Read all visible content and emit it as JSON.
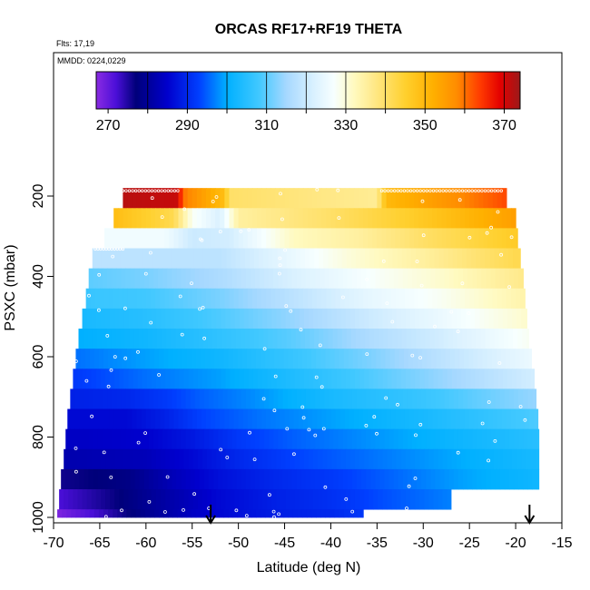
{
  "chart_data": {
    "type": "heatmap",
    "title": "ORCAS RF17+RF19 THETA",
    "note_flights": "Flts: 17,19",
    "note_dates": "MMDD: 0224,0229",
    "xlabel": "Latitude (deg N)",
    "ylabel": "PSXC (mbar)",
    "xlim": [
      -70,
      -15
    ],
    "ylim": [
      1000,
      100
    ],
    "x_ticks": [
      "-70",
      "-65",
      "-60",
      "-55",
      "-50",
      "-45",
      "-40",
      "-35",
      "-30",
      "-25",
      "-20",
      "-15"
    ],
    "y_ticks": [
      "200",
      "400",
      "600",
      "800",
      "1000"
    ],
    "colorbar": {
      "range": [
        267,
        374
      ],
      "tick_labels": [
        "270",
        "290",
        "310",
        "330",
        "350",
        "370"
      ],
      "stops": [
        [
          267,
          "#8a2be2"
        ],
        [
          272,
          "#4b0fd8"
        ],
        [
          277,
          "#00007a"
        ],
        [
          285,
          "#0000cd"
        ],
        [
          293,
          "#0040ff"
        ],
        [
          300,
          "#00b0ff"
        ],
        [
          308,
          "#40c8ff"
        ],
        [
          315,
          "#a6d8ff"
        ],
        [
          322,
          "#daf1ff"
        ],
        [
          327,
          "#f7ffff"
        ],
        [
          332,
          "#fffac0"
        ],
        [
          337,
          "#ffe98a"
        ],
        [
          345,
          "#ffd02e"
        ],
        [
          352,
          "#ffb000"
        ],
        [
          358,
          "#ff8c00"
        ],
        [
          364,
          "#ff3a00"
        ],
        [
          369,
          "#e30000"
        ],
        [
          374,
          "#9b1a1a"
        ]
      ]
    },
    "pressure_bands": [
      {
        "p_top": 180,
        "p_bot": 230,
        "lat_min": -62.5,
        "lat_max": -21.0,
        "theta": [
          [
            -62.5,
            372
          ],
          [
            -56.5,
            371
          ],
          [
            -56,
            360
          ],
          [
            -51.5,
            349
          ],
          [
            -51,
            340
          ],
          [
            -35,
            336
          ],
          [
            -34,
            350
          ],
          [
            -21,
            363
          ]
        ]
      },
      {
        "p_top": 230,
        "p_bot": 280,
        "lat_min": -63.5,
        "lat_max": -20.0,
        "theta": [
          [
            -63.5,
            349
          ],
          [
            -57,
            342
          ],
          [
            -55,
            328
          ],
          [
            -52,
            322
          ],
          [
            -50,
            335
          ],
          [
            -40,
            340
          ],
          [
            -32,
            345
          ],
          [
            -20,
            355
          ]
        ]
      },
      {
        "p_top": 280,
        "p_bot": 330,
        "lat_min": -64.5,
        "lat_max": -19.8,
        "theta": [
          [
            -64.5,
            326
          ],
          [
            -58,
            326
          ],
          [
            -55,
            320
          ],
          [
            -51,
            321
          ],
          [
            -44,
            332
          ],
          [
            -37,
            335
          ],
          [
            -30,
            340
          ],
          [
            -20,
            346
          ]
        ]
      },
      {
        "p_top": 330,
        "p_bot": 380,
        "lat_min": -65.8,
        "lat_max": -19.5,
        "theta": [
          [
            -65.8,
            318
          ],
          [
            -58,
            318
          ],
          [
            -52,
            318
          ],
          [
            -45,
            324
          ],
          [
            -38,
            330
          ],
          [
            -30,
            335
          ],
          [
            -20,
            342
          ]
        ]
      },
      {
        "p_top": 380,
        "p_bot": 430,
        "lat_min": -66.2,
        "lat_max": -19.2,
        "theta": [
          [
            -66.2,
            310
          ],
          [
            -60,
            312
          ],
          [
            -52,
            316
          ],
          [
            -44,
            322
          ],
          [
            -36,
            327
          ],
          [
            -28,
            331
          ],
          [
            -19.2,
            337
          ]
        ]
      },
      {
        "p_top": 430,
        "p_bot": 480,
        "lat_min": -66.5,
        "lat_max": -19.0,
        "theta": [
          [
            -66.5,
            307
          ],
          [
            -60,
            308
          ],
          [
            -52,
            312
          ],
          [
            -44,
            318
          ],
          [
            -36,
            324
          ],
          [
            -28,
            328
          ],
          [
            -19,
            334
          ]
        ]
      },
      {
        "p_top": 480,
        "p_bot": 530,
        "lat_min": -66.9,
        "lat_max": -18.8,
        "theta": [
          [
            -66.9,
            303
          ],
          [
            -60,
            305
          ],
          [
            -52,
            309
          ],
          [
            -44,
            314
          ],
          [
            -36,
            320
          ],
          [
            -28,
            325
          ],
          [
            -18.8,
            331
          ]
        ]
      },
      {
        "p_top": 530,
        "p_bot": 580,
        "lat_min": -67.3,
        "lat_max": -18.6,
        "theta": [
          [
            -67.3,
            300
          ],
          [
            -60,
            302
          ],
          [
            -52,
            306
          ],
          [
            -44,
            310
          ],
          [
            -36,
            316
          ],
          [
            -28,
            321
          ],
          [
            -18.6,
            328
          ]
        ]
      },
      {
        "p_top": 580,
        "p_bot": 630,
        "lat_min": -67.6,
        "lat_max": -18.3,
        "theta": [
          [
            -67.6,
            296
          ],
          [
            -60,
            299
          ],
          [
            -52,
            302
          ],
          [
            -44,
            307
          ],
          [
            -36,
            312
          ],
          [
            -28,
            318
          ],
          [
            -18.3,
            325
          ]
        ]
      },
      {
        "p_top": 630,
        "p_bot": 680,
        "lat_min": -67.9,
        "lat_max": -18.0,
        "theta": [
          [
            -67.9,
            292
          ],
          [
            -60,
            296
          ],
          [
            -52,
            299
          ],
          [
            -44,
            304
          ],
          [
            -36,
            309
          ],
          [
            -28,
            314
          ],
          [
            -18,
            321
          ]
        ]
      },
      {
        "p_top": 680,
        "p_bot": 730,
        "lat_min": -68.2,
        "lat_max": -17.8,
        "theta": [
          [
            -68.2,
            289
          ],
          [
            -62,
            290
          ],
          [
            -58,
            292
          ],
          [
            -54,
            295
          ],
          [
            -48,
            298
          ],
          [
            -40,
            303
          ],
          [
            -30,
            307
          ],
          [
            -17.8,
            314
          ]
        ]
      },
      {
        "p_top": 730,
        "p_bot": 780,
        "lat_min": -68.5,
        "lat_max": -17.6,
        "theta": [
          [
            -68.5,
            286
          ],
          [
            -62,
            286
          ],
          [
            -58,
            289
          ],
          [
            -54,
            293
          ],
          [
            -48,
            296
          ],
          [
            -40,
            299
          ],
          [
            -30,
            303
          ],
          [
            -17.6,
            309
          ]
        ]
      },
      {
        "p_top": 780,
        "p_bot": 830,
        "lat_min": -68.7,
        "lat_max": -17.5,
        "theta": [
          [
            -68.7,
            284
          ],
          [
            -60,
            285
          ],
          [
            -55,
            288
          ],
          [
            -50,
            292
          ],
          [
            -44,
            295
          ],
          [
            -36,
            298
          ],
          [
            -28,
            301
          ],
          [
            -17.5,
            305
          ]
        ]
      },
      {
        "p_top": 830,
        "p_bot": 880,
        "lat_min": -68.9,
        "lat_max": -17.5,
        "theta": [
          [
            -68.9,
            282
          ],
          [
            -60,
            283
          ],
          [
            -55,
            286
          ],
          [
            -50,
            290
          ],
          [
            -44,
            293
          ],
          [
            -36,
            296
          ],
          [
            -28,
            299
          ],
          [
            -17.5,
            303
          ]
        ]
      },
      {
        "p_top": 880,
        "p_bot": 930,
        "lat_min": -69.2,
        "lat_max": -17.5,
        "theta": [
          [
            -69.2,
            276
          ],
          [
            -62,
            278
          ],
          [
            -57,
            283
          ],
          [
            -52,
            287
          ],
          [
            -46,
            290
          ],
          [
            -40,
            292
          ],
          [
            -34,
            295
          ],
          [
            -26,
            299
          ],
          [
            -17.5,
            302
          ]
        ]
      },
      {
        "p_top": 930,
        "p_bot": 980,
        "lat_min": -69.4,
        "lat_max": -27.0,
        "theta": [
          [
            -69.4,
            272
          ],
          [
            -64,
            276
          ],
          [
            -58,
            281
          ],
          [
            -52,
            286
          ],
          [
            -46,
            289
          ],
          [
            -40,
            291
          ],
          [
            -34,
            294
          ],
          [
            -27,
            297
          ]
        ]
      },
      {
        "p_top": 980,
        "p_bot": 1000,
        "lat_min": -69.6,
        "lat_max": -36.5,
        "theta": [
          [
            -69.6,
            268
          ],
          [
            -65,
            273
          ],
          [
            -60,
            279
          ],
          [
            -55,
            284
          ],
          [
            -50,
            287
          ],
          [
            -45,
            289
          ],
          [
            -40,
            290
          ],
          [
            -36.5,
            292
          ]
        ]
      }
    ],
    "annotations": [
      {
        "type": "arrow",
        "x": -53.0,
        "note": "down arrow at bottom"
      },
      {
        "type": "arrow",
        "x": -18.5,
        "note": "down arrow at bottom"
      }
    ]
  }
}
